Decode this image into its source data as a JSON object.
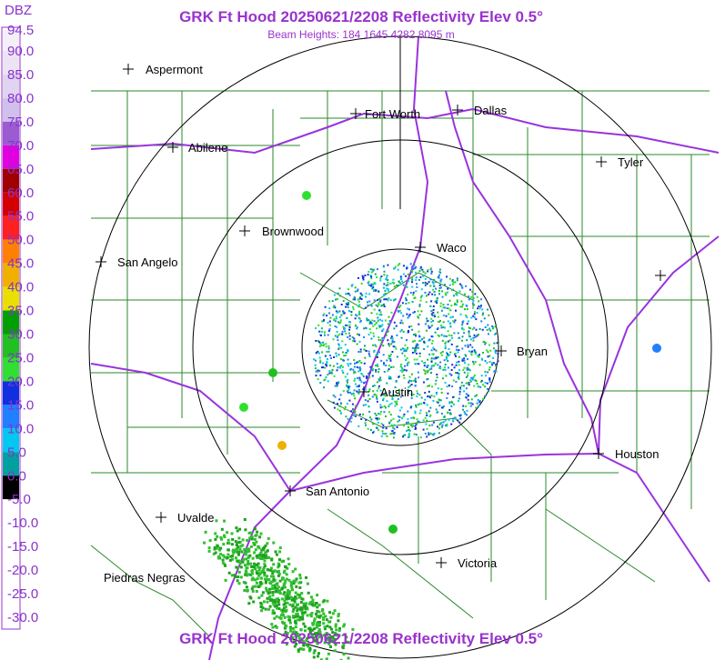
{
  "title": "GRK Ft Hood 20250621/2208 Reflectivity Elev 0.5°",
  "subtitle": "Beam Heights: 184 1645 4282 8095 m",
  "scale": {
    "title": "DBZ",
    "labels": [
      "94.5",
      "90.0",
      "85.0",
      "80.0",
      "75.0",
      "70.0",
      "65.0",
      "60.0",
      "55.0",
      "50.0",
      "45.0",
      "40.0",
      "35.0",
      "30.0",
      "25.0",
      "20.0",
      "15.0",
      "10.0",
      "5.0",
      "0.0",
      "-5.0",
      "-10.0",
      "-15.0",
      "-20.0",
      "-25.0",
      "-30.0"
    ],
    "colors": [
      "#f4f0f8",
      "#ece4f4",
      "#e0d4f0",
      "#d0c0ec",
      "#9a5cd0",
      "#e000e0",
      "#a00000",
      "#d40000",
      "#ff2020",
      "#ff8000",
      "#f0b000",
      "#e8e000",
      "#00a000",
      "#20c020",
      "#30e030",
      "#1030e0",
      "#2080ff",
      "#00c8f0",
      "#00a0a0",
      "#000000",
      "#ffffff",
      "#ffffff",
      "#ffffff",
      "#ffffff",
      "#ffffff"
    ]
  },
  "cities": [
    "Aspermont",
    "Fort Worth",
    "Dallas",
    "Abilene",
    "Tyler",
    "Brownwood",
    "Waco",
    "San Angelo",
    "Bryan",
    "Austin",
    "Houston",
    "San Antonio",
    "Uvalde",
    "Victoria",
    "Piedras Negras"
  ]
}
